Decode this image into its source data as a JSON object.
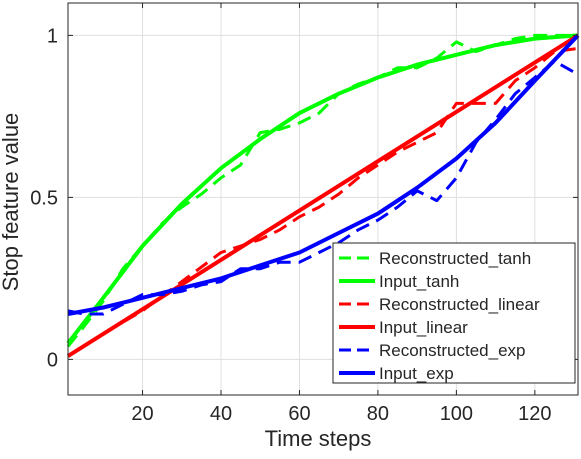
{
  "chart_data": {
    "type": "line",
    "title": "",
    "xlabel": "Time steps",
    "ylabel": "Stop feature value",
    "xlim": [
      1,
      131
    ],
    "ylim": [
      -0.11,
      1.1
    ],
    "xticks": [
      20,
      40,
      60,
      80,
      100,
      120
    ],
    "yticks": [
      0,
      0.5,
      1
    ],
    "xtick_labels": [
      "20",
      "40",
      "60",
      "80",
      "100",
      "120"
    ],
    "ytick_labels": [
      "0",
      "0.5",
      "1"
    ],
    "grid": true,
    "legend_position": "bottom-right",
    "series": [
      {
        "name": "Reconstructed_tanh",
        "color": "#00ff00",
        "style": "dashed",
        "x": [
          1,
          5,
          10,
          15,
          20,
          25,
          30,
          35,
          40,
          45,
          50,
          55,
          60,
          65,
          70,
          75,
          80,
          85,
          90,
          95,
          100,
          105,
          110,
          115,
          120,
          125,
          131
        ],
        "y": [
          0.04,
          0.1,
          0.18,
          0.28,
          0.35,
          0.42,
          0.47,
          0.51,
          0.56,
          0.6,
          0.7,
          0.71,
          0.73,
          0.76,
          0.82,
          0.85,
          0.87,
          0.9,
          0.9,
          0.93,
          0.98,
          0.95,
          0.97,
          0.99,
          1.0,
          1.0,
          1.0
        ]
      },
      {
        "name": "Input_tanh",
        "color": "#00ff00",
        "style": "solid",
        "x": [
          1,
          10,
          20,
          30,
          40,
          50,
          60,
          70,
          80,
          90,
          100,
          110,
          120,
          131
        ],
        "y": [
          0.05,
          0.19,
          0.35,
          0.48,
          0.59,
          0.68,
          0.76,
          0.82,
          0.87,
          0.91,
          0.94,
          0.97,
          0.99,
          1.0
        ]
      },
      {
        "name": "Reconstructed_linear",
        "color": "#ff0000",
        "style": "dashed",
        "x": [
          1,
          10,
          20,
          30,
          40,
          45,
          50,
          55,
          60,
          65,
          70,
          75,
          80,
          85,
          90,
          95,
          100,
          105,
          110,
          115,
          120,
          125,
          131
        ],
        "y": [
          0.01,
          0.08,
          0.15,
          0.24,
          0.33,
          0.35,
          0.37,
          0.4,
          0.44,
          0.47,
          0.51,
          0.56,
          0.6,
          0.64,
          0.67,
          0.7,
          0.79,
          0.79,
          0.79,
          0.86,
          0.9,
          0.95,
          0.96
        ]
      },
      {
        "name": "Input_linear",
        "color": "#ff0000",
        "style": "solid",
        "x": [
          1,
          131
        ],
        "y": [
          0.01,
          1.0
        ]
      },
      {
        "name": "Reconstructed_exp",
        "color": "#0000ff",
        "style": "dashed",
        "x": [
          1,
          5,
          10,
          15,
          20,
          25,
          30,
          35,
          40,
          45,
          50,
          55,
          60,
          65,
          70,
          75,
          80,
          85,
          90,
          95,
          100,
          105,
          110,
          115,
          120,
          125,
          131
        ],
        "y": [
          0.15,
          0.14,
          0.14,
          0.17,
          0.2,
          0.2,
          0.21,
          0.23,
          0.24,
          0.28,
          0.28,
          0.3,
          0.3,
          0.33,
          0.36,
          0.4,
          0.43,
          0.47,
          0.52,
          0.49,
          0.56,
          0.67,
          0.74,
          0.82,
          0.87,
          0.92,
          0.88
        ]
      },
      {
        "name": "Input_exp",
        "color": "#0000ff",
        "style": "solid",
        "x": [
          1,
          10,
          20,
          30,
          40,
          50,
          60,
          70,
          80,
          90,
          100,
          110,
          120,
          131
        ],
        "y": [
          0.14,
          0.16,
          0.19,
          0.22,
          0.25,
          0.29,
          0.33,
          0.39,
          0.45,
          0.53,
          0.62,
          0.73,
          0.86,
          1.0
        ]
      }
    ]
  }
}
